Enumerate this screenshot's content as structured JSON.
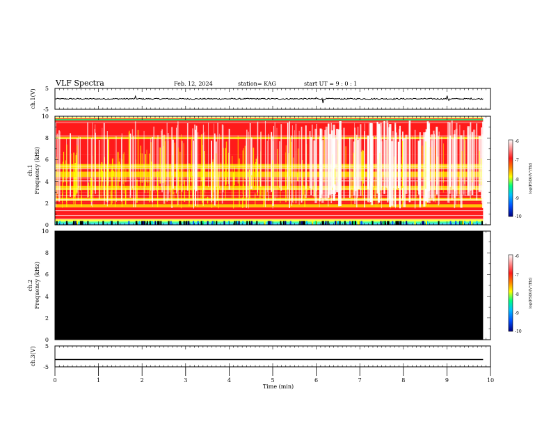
{
  "header": {
    "title": "VLF Spectra",
    "date": "Feb. 12, 2024",
    "station": "station= KAG",
    "start": "start UT =  9 : 0 : 1"
  },
  "chart_data": {
    "type": "heatmap",
    "x_axis": {
      "label": "Time  (min)",
      "range": [
        0,
        10
      ],
      "ticks": [
        "0",
        "1",
        "2",
        "3",
        "4",
        "5",
        "6",
        "7",
        "8",
        "9",
        "10"
      ]
    },
    "panels": [
      {
        "id": "ch1-waveform",
        "type": "line",
        "ylabel": "ch.1(V)",
        "ylim": [
          -5,
          5
        ],
        "yticks": [
          "5",
          "-5"
        ],
        "baseline": 0,
        "spikes": [
          {
            "t": 1.85,
            "v": 1.3
          },
          {
            "t": 6.0,
            "v": 0.6
          },
          {
            "t": 6.15,
            "v": -2.0
          },
          {
            "t": 9.0,
            "v": 1.5
          },
          {
            "t": 9.05,
            "v": -0.8
          },
          {
            "t": 9.55,
            "v": 0.4
          }
        ]
      },
      {
        "id": "ch1-spectrogram",
        "type": "heatmap",
        "ylabel_line1": "ch.1",
        "ylabel_line2": "Frequency  (kHz)",
        "ylim": [
          0,
          10
        ],
        "yticks": [
          "0",
          "2",
          "4",
          "6",
          "8",
          "10"
        ],
        "data_end_min": 9.83
      },
      {
        "id": "ch2-spectrogram",
        "type": "heatmap",
        "ylabel_line1": "ch.2",
        "ylabel_line2": "Frequency  (kHz)",
        "ylim": [
          0,
          10
        ],
        "yticks": [
          "0",
          "2",
          "4",
          "6",
          "8",
          "10"
        ],
        "data_end_min": 9.83,
        "fill": "#000000"
      },
      {
        "id": "ch3-waveform",
        "type": "line",
        "ylabel": "ch.3(V)",
        "ylim": [
          -5,
          5
        ],
        "yticks": [
          "5",
          "-5"
        ],
        "constant_value": -1.5,
        "data_end_min": 9.83
      }
    ],
    "colorbar": {
      "label": "log(PSD)(V²/Hz)",
      "range": [
        -10,
        -6
      ],
      "ticks": [
        "-6",
        "-7",
        "-8",
        "-9",
        "-10"
      ],
      "colors": [
        "#000080",
        "#0050ff",
        "#00c0ff",
        "#00ff80",
        "#ffff00",
        "#ff8000",
        "#ff1a1a",
        "#ffffff"
      ]
    }
  }
}
